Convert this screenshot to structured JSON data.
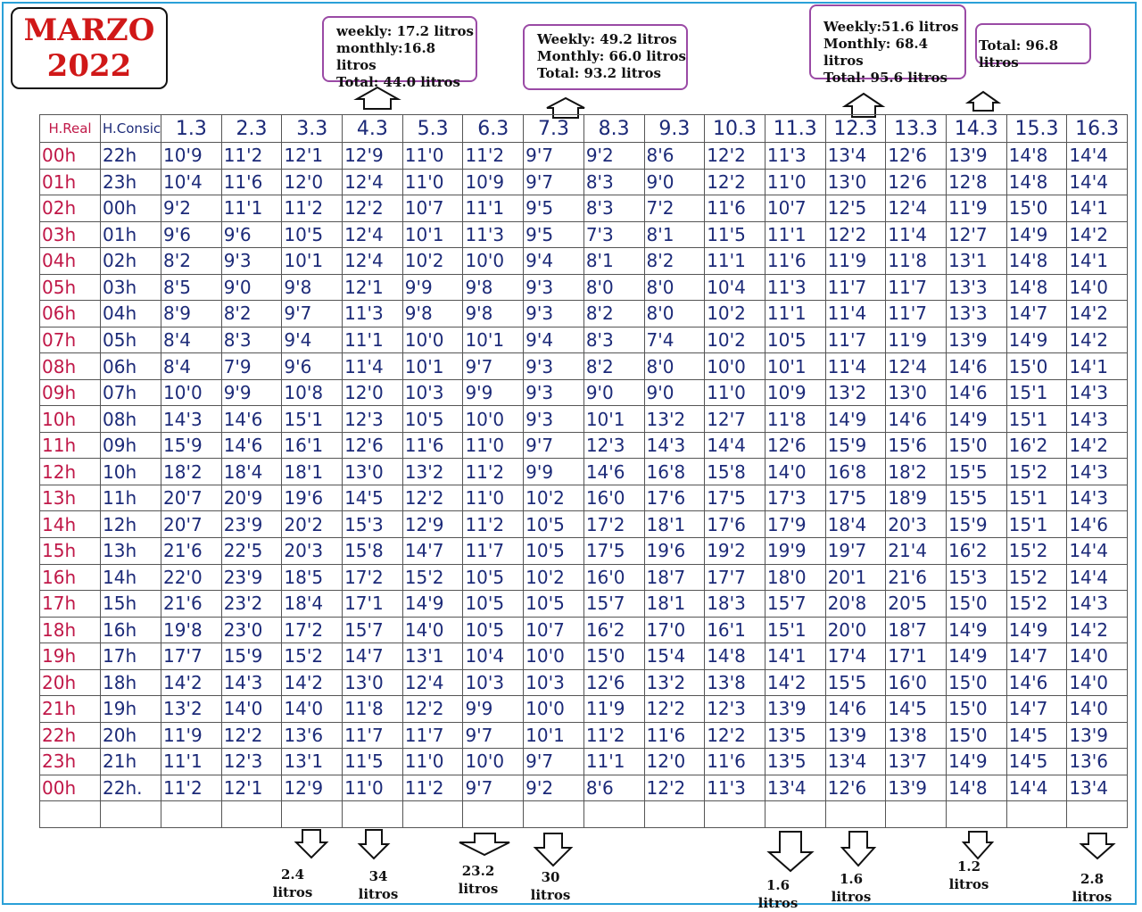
{
  "title": {
    "month": "MARZO",
    "year": "2022"
  },
  "summaries": [
    {
      "lines": [
        "weekly: 17.2 litros",
        "monthly:16.8 litros",
        "Total: 44.0 litros"
      ]
    },
    {
      "lines": [
        "Weekly: 49.2 litros",
        "Monthly: 66.0 litros",
        "Total: 93.2 litros"
      ]
    },
    {
      "lines": [
        "Weekly:51.6 litros",
        "Monthly: 68.4 litros",
        "Total: 95.6 litros"
      ]
    },
    {
      "lines": [
        "Total: 96.8 litros"
      ]
    }
  ],
  "table": {
    "headers": [
      "H.Real",
      "H.Consic",
      "1.3",
      "2.3",
      "3.3",
      "4.3",
      "5.3",
      "6.3",
      "7.3",
      "8.3",
      "9.3",
      "10.3",
      "11.3",
      "12.3",
      "13.3",
      "14.3",
      "15.3",
      "16.3"
    ],
    "rows": [
      [
        "00h",
        "22h",
        "10'9",
        "11'2",
        "12'1",
        "12'9",
        "11'0",
        "11'2",
        "9'7",
        "9'2",
        "8'6",
        "12'2",
        "11'3",
        "13'4",
        "12'6",
        "13'9",
        "14'8",
        "14'4"
      ],
      [
        "01h",
        "23h",
        "10'4",
        "11'6",
        "12'0",
        "12'4",
        "11'0",
        "10'9",
        "9'7",
        "8'3",
        "9'0",
        "12'2",
        "11'0",
        "13'0",
        "12'6",
        "12'8",
        "14'8",
        "14'4"
      ],
      [
        "02h",
        "00h",
        "9'2",
        "11'1",
        "11'2",
        "12'2",
        "10'7",
        "11'1",
        "9'5",
        "8'3",
        "7'2",
        "11'6",
        "10'7",
        "12'5",
        "12'4",
        "11'9",
        "15'0",
        "14'1"
      ],
      [
        "03h",
        "01h",
        "9'6",
        "9'6",
        "10'5",
        "12'4",
        "10'1",
        "11'3",
        "9'5",
        "7'3",
        "8'1",
        "11'5",
        "11'1",
        "12'2",
        "11'4",
        "12'7",
        "14'9",
        "14'2"
      ],
      [
        "04h",
        "02h",
        "8'2",
        "9'3",
        "10'1",
        "12'4",
        "10'2",
        "10'0",
        "9'4",
        "8'1",
        "8'2",
        "11'1",
        "11'6",
        "11'9",
        "11'8",
        "13'1",
        "14'8",
        "14'1"
      ],
      [
        "05h",
        "03h",
        "8'5",
        "9'0",
        "9'8",
        "12'1",
        "9'9",
        "9'8",
        "9'3",
        "8'0",
        "8'0",
        "10'4",
        "11'3",
        "11'7",
        "11'7",
        "13'3",
        "14'8",
        "14'0"
      ],
      [
        "06h",
        "04h",
        "8'9",
        "8'2",
        "9'7",
        "11'3",
        "9'8",
        "9'8",
        "9'3",
        "8'2",
        "8'0",
        "10'2",
        "11'1",
        "11'4",
        "11'7",
        "13'3",
        "14'7",
        "14'2"
      ],
      [
        "07h",
        "05h",
        "8'4",
        "8'3",
        "9'4",
        "11'1",
        "10'0",
        "10'1",
        "9'4",
        "8'3",
        "7'4",
        "10'2",
        "10'5",
        "11'7",
        "11'9",
        "13'9",
        "14'9",
        "14'2"
      ],
      [
        "08h",
        "06h",
        "8'4",
        "7'9",
        "9'6",
        "11'4",
        "10'1",
        "9'7",
        "9'3",
        "8'2",
        "8'0",
        "10'0",
        "10'1",
        "11'4",
        "12'4",
        "14'6",
        "15'0",
        "14'1"
      ],
      [
        "09h",
        "07h",
        "10'0",
        "9'9",
        "10'8",
        "12'0",
        "10'3",
        "9'9",
        "9'3",
        "9'0",
        "9'0",
        "11'0",
        "10'9",
        "13'2",
        "13'0",
        "14'6",
        "15'1",
        "14'3"
      ],
      [
        "10h",
        "08h",
        "14'3",
        "14'6",
        "15'1",
        "12'3",
        "10'5",
        "10'0",
        "9'3",
        "10'1",
        "13'2",
        "12'7",
        "11'8",
        "14'9",
        "14'6",
        "14'9",
        "15'1",
        "14'3"
      ],
      [
        "11h",
        "09h",
        "15'9",
        "14'6",
        "16'1",
        "12'6",
        "11'6",
        "11'0",
        "9'7",
        "12'3",
        "14'3",
        "14'4",
        "12'6",
        "15'9",
        "15'6",
        "15'0",
        "16'2",
        "14'2"
      ],
      [
        "12h",
        "10h",
        "18'2",
        "18'4",
        "18'1",
        "13'0",
        "13'2",
        "11'2",
        "9'9",
        "14'6",
        "16'8",
        "15'8",
        "14'0",
        "16'8",
        "18'2",
        "15'5",
        "15'2",
        "14'3"
      ],
      [
        "13h",
        "11h",
        "20'7",
        "20'9",
        "19'6",
        "14'5",
        "12'2",
        "11'0",
        "10'2",
        "16'0",
        "17'6",
        "17'5",
        "17'3",
        "17'5",
        "18'9",
        "15'5",
        "15'1",
        "14'3"
      ],
      [
        "14h",
        "12h",
        "20'7",
        "23'9",
        "20'2",
        "15'3",
        "12'9",
        "11'2",
        "10'5",
        "17'2",
        "18'1",
        "17'6",
        "17'9",
        "18'4",
        "20'3",
        "15'9",
        "15'1",
        "14'6"
      ],
      [
        "15h",
        "13h",
        "21'6",
        "22'5",
        "20'3",
        "15'8",
        "14'7",
        "11'7",
        "10'5",
        "17'5",
        "19'6",
        "19'2",
        "19'9",
        "19'7",
        "21'4",
        "16'2",
        "15'2",
        "14'4"
      ],
      [
        "16h",
        "14h",
        "22'0",
        "23'9",
        "18'5",
        "17'2",
        "15'2",
        "10'5",
        "10'2",
        "16'0",
        "18'7",
        "17'7",
        "18'0",
        "20'1",
        "21'6",
        "15'3",
        "15'2",
        "14'4"
      ],
      [
        "17h",
        "15h",
        "21'6",
        "23'2",
        "18'4",
        "17'1",
        "14'9",
        "10'5",
        "10'5",
        "15'7",
        "18'1",
        "18'3",
        "15'7",
        "20'8",
        "20'5",
        "15'0",
        "15'2",
        "14'3"
      ],
      [
        "18h",
        "16h",
        "19'8",
        "23'0",
        "17'2",
        "15'7",
        "14'0",
        "10'5",
        "10'7",
        "16'2",
        "17'0",
        "16'1",
        "15'1",
        "20'0",
        "18'7",
        "14'9",
        "14'9",
        "14'2"
      ],
      [
        "19h",
        "17h",
        "17'7",
        "15'9",
        "15'2",
        "14'7",
        "13'1",
        "10'4",
        "10'0",
        "15'0",
        "15'4",
        "14'8",
        "14'1",
        "17'4",
        "17'1",
        "14'9",
        "14'7",
        "14'0"
      ],
      [
        "20h",
        "18h",
        "14'2",
        "14'3",
        "14'2",
        "13'0",
        "12'4",
        "10'3",
        "10'3",
        "12'6",
        "13'2",
        "13'8",
        "14'2",
        "15'5",
        "16'0",
        "15'0",
        "14'6",
        "14'0"
      ],
      [
        "21h",
        "19h",
        "13'2",
        "14'0",
        "14'0",
        "11'8",
        "12'2",
        "9'9",
        "10'0",
        "11'9",
        "12'2",
        "12'3",
        "13'9",
        "14'6",
        "14'5",
        "15'0",
        "14'7",
        "14'0"
      ],
      [
        "22h",
        "20h",
        "11'9",
        "12'2",
        "13'6",
        "11'7",
        "11'7",
        "9'7",
        "10'1",
        "11'2",
        "11'6",
        "12'2",
        "13'5",
        "13'9",
        "13'8",
        "15'0",
        "14'5",
        "13'9"
      ],
      [
        "23h",
        "21h",
        "11'1",
        "12'3",
        "13'1",
        "11'5",
        "11'0",
        "10'0",
        "9'7",
        "11'1",
        "12'0",
        "11'6",
        "13'5",
        "13'4",
        "13'7",
        "14'9",
        "14'5",
        "13'6"
      ],
      [
        "00h",
        "22h.",
        "11'2",
        "12'1",
        "12'9",
        "11'0",
        "11'2",
        "9'7",
        "9'2",
        "8'6",
        "12'2",
        "11'3",
        "13'4",
        "12'6",
        "13'9",
        "14'8",
        "14'4",
        "13'4"
      ]
    ]
  },
  "bottom_notes": [
    {
      "value": "2.4",
      "unit": "litros"
    },
    {
      "value": "34",
      "unit": "litros"
    },
    {
      "value": "23.2",
      "unit": "litros"
    },
    {
      "value": "30",
      "unit": "litros"
    },
    {
      "value": "1.6",
      "unit": "litros"
    },
    {
      "value": "1.6",
      "unit": "litros"
    },
    {
      "value": "1.2",
      "unit": "litros"
    },
    {
      "value": "2.8",
      "unit": "litros"
    }
  ]
}
